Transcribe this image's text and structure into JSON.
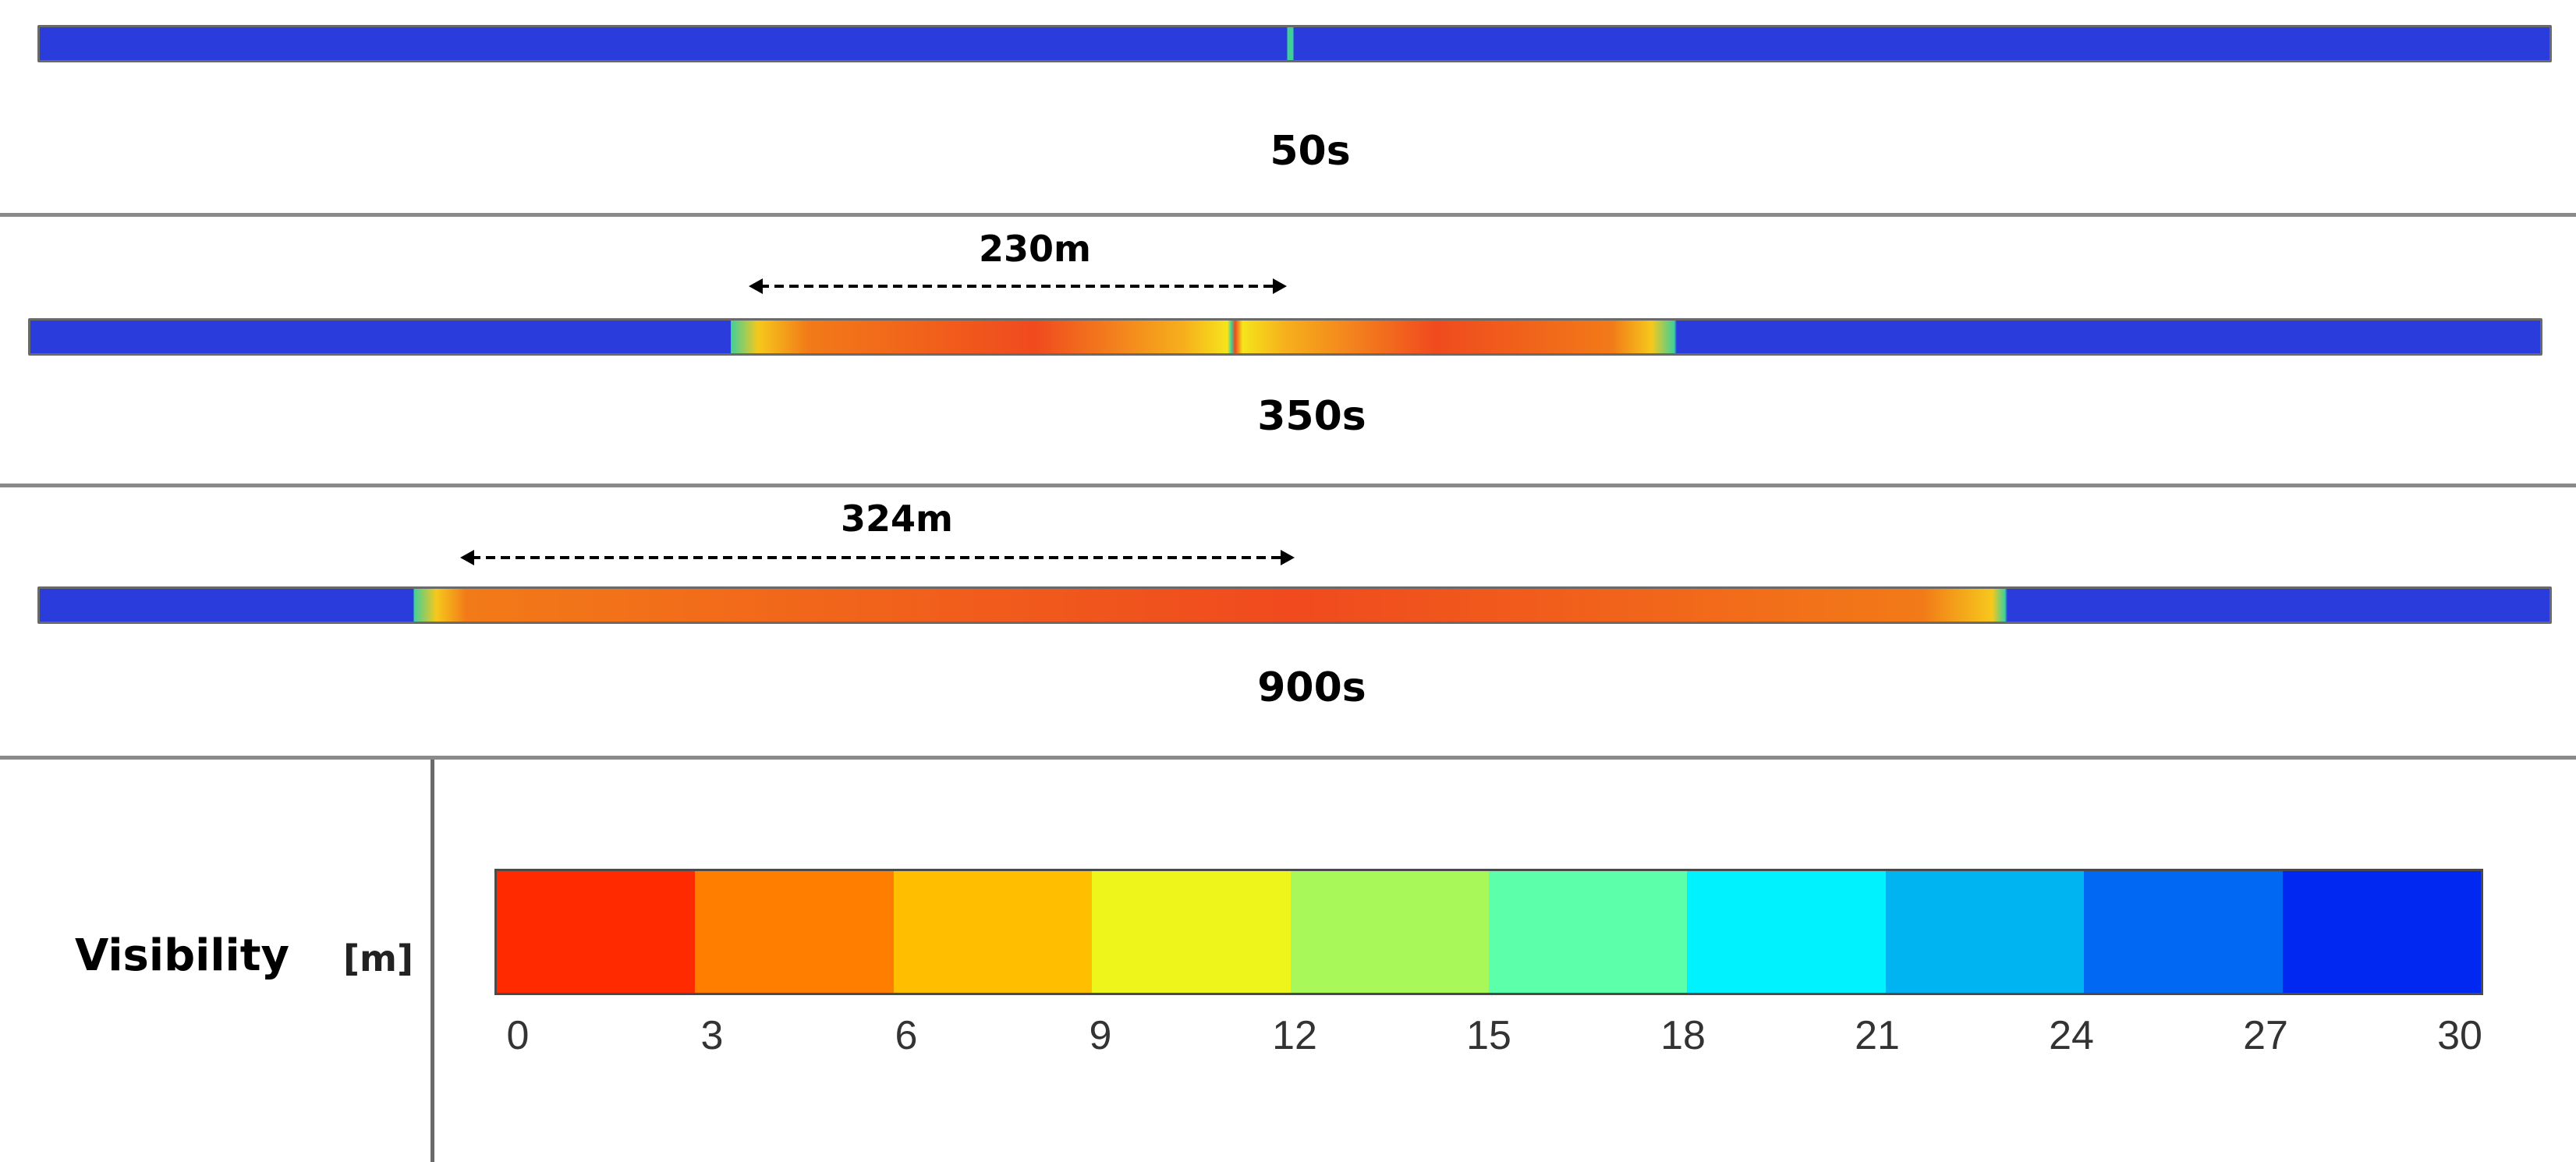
{
  "panels": [
    {
      "time": "50s",
      "dimension": "",
      "colors": {
        "clear": "#2a3ddc",
        "smoke_core": "#f04a1e",
        "smoke_mid": "#f27a18",
        "front": "#f6c81c",
        "edge": "#3fd09a"
      }
    },
    {
      "time": "350s",
      "dimension": "230m"
    },
    {
      "time": "900s",
      "dimension": "324m"
    }
  ],
  "legend": {
    "title": "Visibility",
    "unit": "[m]",
    "ticks": [
      "0",
      "3",
      "6",
      "9",
      "12",
      "15",
      "18",
      "21",
      "24",
      "27",
      "30"
    ],
    "colors": [
      "#ff2a00",
      "#ff7e00",
      "#ffbf00",
      "#eef51a",
      "#a8f85a",
      "#5cffaa",
      "#00f2ff",
      "#00b4f2",
      "#0068f2",
      "#0028f0"
    ]
  }
}
